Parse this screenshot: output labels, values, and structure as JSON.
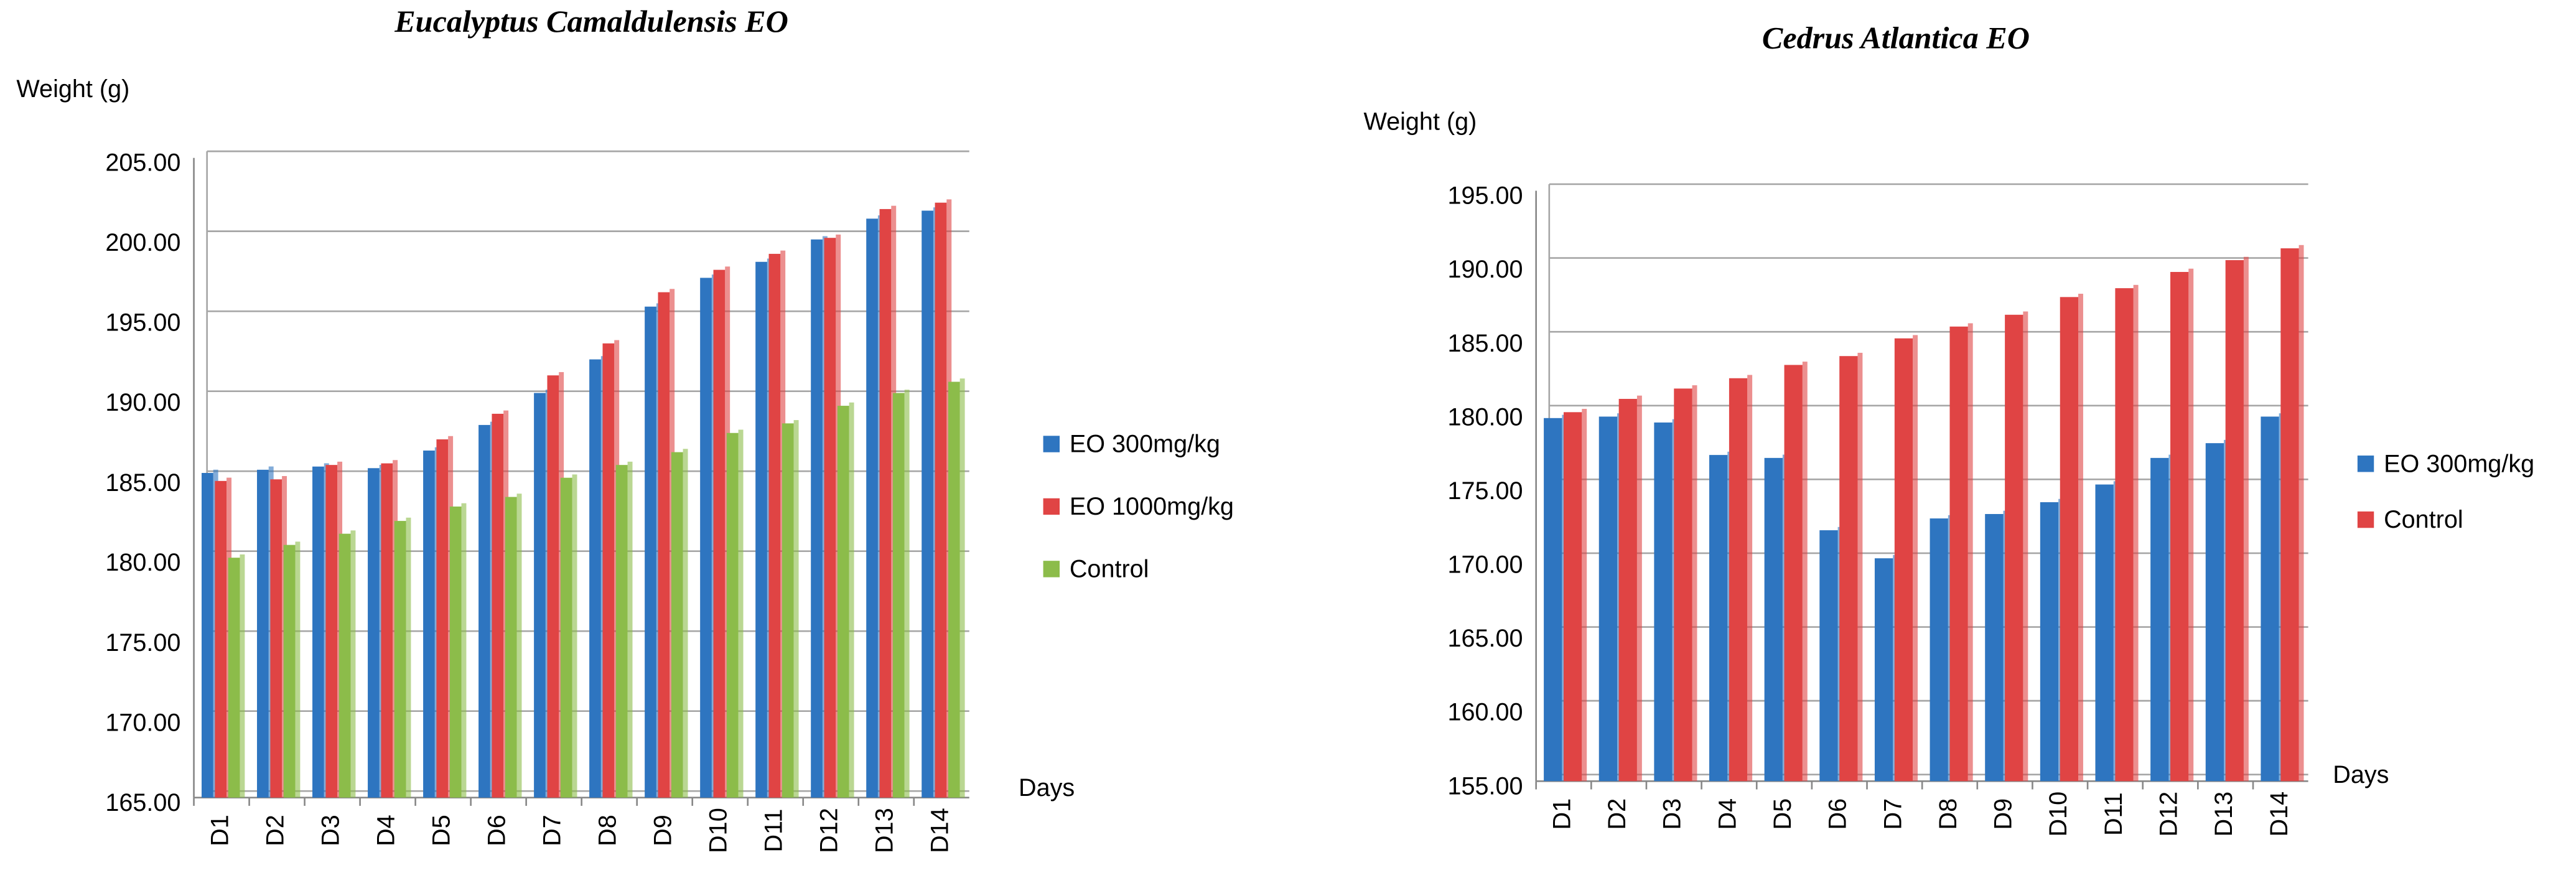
{
  "chart_data": [
    {
      "type": "bar",
      "title": "Eucalyptus Camaldulensis EO",
      "y_label": "Weight (g)",
      "x_label": "Days",
      "categories": [
        "D1",
        "D2",
        "D3",
        "D4",
        "D5",
        "D6",
        "D7",
        "D8",
        "D9",
        "D10",
        "D11",
        "D12",
        "D13",
        "D14"
      ],
      "series": [
        {
          "name": "EO 300mg/kg",
          "color": "#2e75c0",
          "values": [
            185.3,
            185.5,
            185.7,
            185.6,
            186.7,
            188.3,
            190.3,
            192.4,
            195.7,
            197.5,
            198.5,
            199.9,
            201.2,
            201.7
          ]
        },
        {
          "name": " EO 1000mg/kg",
          "color": "#e04444",
          "values": [
            184.8,
            184.9,
            185.8,
            185.9,
            187.4,
            189.0,
            191.4,
            193.4,
            196.6,
            198.0,
            199.0,
            200.0,
            201.8,
            202.2
          ]
        },
        {
          "name": "Control",
          "color": "#8cbc4a",
          "values": [
            180.0,
            180.8,
            181.5,
            182.3,
            183.2,
            183.8,
            185.0,
            185.8,
            186.6,
            187.8,
            188.4,
            189.5,
            190.3,
            191.0
          ]
        }
      ],
      "ylim": [
        165,
        205
      ],
      "yticks": [
        {
          "value": 165,
          "label": "165.00"
        },
        {
          "value": 170,
          "label": "170.00"
        },
        {
          "value": 175,
          "label": "175.00"
        },
        {
          "value": 180,
          "label": "180.00"
        },
        {
          "value": 185,
          "label": "185.00"
        },
        {
          "value": 190,
          "label": "190.00"
        },
        {
          "value": 195,
          "label": "195.00"
        },
        {
          "value": 200,
          "label": "200.00"
        },
        {
          "value": 205,
          "label": "205.00"
        }
      ],
      "grid": true,
      "legend": "right"
    },
    {
      "type": "bar",
      "title": "Cedrus Atlantica EO",
      "y_label": "Weight (g)",
      "x_label": "Days",
      "categories": [
        "D1",
        "D2",
        "D3",
        "D4",
        "D5",
        "D6",
        "D7",
        "D8",
        "D9",
        "D10",
        "D11",
        "D12",
        "D13",
        "D14"
      ],
      "series": [
        {
          "name": "EO 300mg/kg",
          "color": "#2e75c0",
          "values": [
            179.6,
            179.7,
            179.3,
            177.1,
            176.9,
            172.0,
            170.1,
            172.8,
            173.1,
            173.9,
            175.1,
            176.9,
            177.9,
            179.7
          ]
        },
        {
          "name": "Control",
          "color": "#e04444",
          "values": [
            180.0,
            180.9,
            181.6,
            182.3,
            183.2,
            183.8,
            185.0,
            185.8,
            186.6,
            187.8,
            188.4,
            189.5,
            190.3,
            191.1
          ]
        }
      ],
      "ylim": [
        155,
        195
      ],
      "yticks": [
        {
          "value": 155,
          "label": "155.00"
        },
        {
          "value": 160,
          "label": "160.00"
        },
        {
          "value": 165,
          "label": "165.00"
        },
        {
          "value": 170,
          "label": "170.00"
        },
        {
          "value": 175,
          "label": "175.00"
        },
        {
          "value": 180,
          "label": "180.00"
        },
        {
          "value": 185,
          "label": "185.00"
        },
        {
          "value": 190,
          "label": "190.00"
        },
        {
          "value": 195,
          "label": "195.00"
        }
      ],
      "grid": true,
      "legend": "right"
    }
  ]
}
